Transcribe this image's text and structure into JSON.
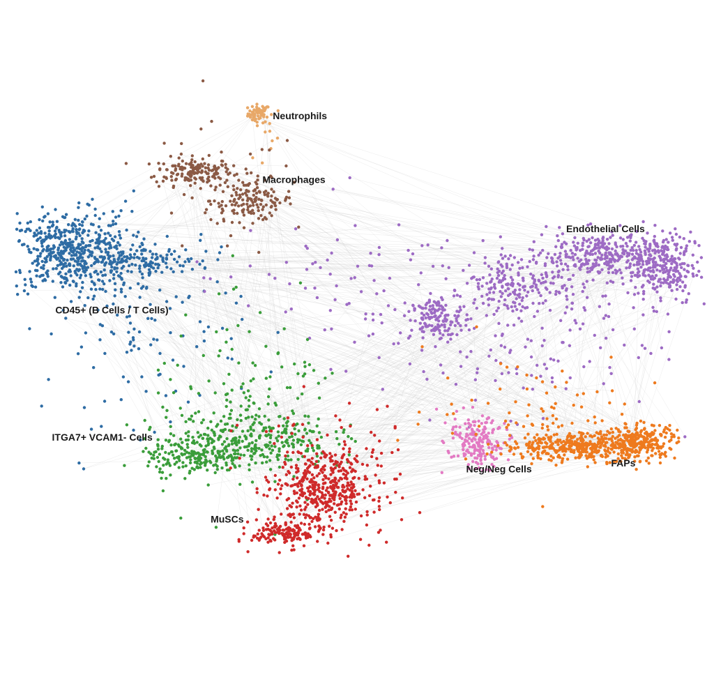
{
  "chart_data": {
    "type": "scatter",
    "title": "",
    "xlabel": "",
    "ylabel": "",
    "grid": false,
    "legend": "none",
    "edges": "light gray graph edges between cells",
    "series": [
      {
        "name": "Neutrophils",
        "color": "#e8a868",
        "clusters": [
          {
            "cx": 0.355,
            "cy": 0.87,
            "sx": 0.008,
            "sy": 0.008,
            "n": 55
          }
        ],
        "spread": [
          {
            "cx": 0.36,
            "cy": 0.83,
            "sx": 0.015,
            "sy": 0.03,
            "n": 12
          }
        ]
      },
      {
        "name": "Macrophages",
        "color": "#8b5a45",
        "clusters": [
          {
            "cx": 0.26,
            "cy": 0.77,
            "sx": 0.028,
            "sy": 0.012,
            "n": 160
          },
          {
            "cx": 0.345,
            "cy": 0.72,
            "sx": 0.03,
            "sy": 0.018,
            "n": 140
          }
        ],
        "spread": [
          {
            "cx": 0.3,
            "cy": 0.73,
            "sx": 0.06,
            "sy": 0.06,
            "n": 40
          }
        ]
      },
      {
        "name": "CD45+ (B Cells / T Cells)",
        "color": "#2e6ca4",
        "clusters": [
          {
            "cx": 0.08,
            "cy": 0.63,
            "sx": 0.045,
            "sy": 0.035,
            "n": 520
          },
          {
            "cx": 0.18,
            "cy": 0.615,
            "sx": 0.045,
            "sy": 0.012,
            "n": 120
          }
        ],
        "spread": [
          {
            "cx": 0.19,
            "cy": 0.52,
            "sx": 0.07,
            "sy": 0.09,
            "n": 150
          }
        ]
      },
      {
        "name": "Endothelial Cells",
        "color": "#9d6bc4",
        "clusters": [
          {
            "cx": 0.86,
            "cy": 0.625,
            "sx": 0.06,
            "sy": 0.02,
            "n": 380
          },
          {
            "cx": 0.94,
            "cy": 0.6,
            "sx": 0.025,
            "sy": 0.03,
            "n": 200
          },
          {
            "cx": 0.73,
            "cy": 0.575,
            "sx": 0.045,
            "sy": 0.025,
            "n": 180
          },
          {
            "cx": 0.61,
            "cy": 0.515,
            "sx": 0.018,
            "sy": 0.018,
            "n": 130
          }
        ],
        "spread": [
          {
            "cx": 0.7,
            "cy": 0.49,
            "sx": 0.12,
            "sy": 0.07,
            "n": 180
          },
          {
            "cx": 0.45,
            "cy": 0.58,
            "sx": 0.1,
            "sy": 0.05,
            "n": 60
          }
        ]
      },
      {
        "name": "ITGA7+ VCAM1- Cells",
        "color": "#3a9d3a",
        "clusters": [
          {
            "cx": 0.34,
            "cy": 0.31,
            "sx": 0.06,
            "sy": 0.025,
            "n": 300
          },
          {
            "cx": 0.26,
            "cy": 0.275,
            "sx": 0.035,
            "sy": 0.015,
            "n": 150
          }
        ],
        "spread": [
          {
            "cx": 0.35,
            "cy": 0.36,
            "sx": 0.08,
            "sy": 0.08,
            "n": 130
          }
        ]
      },
      {
        "name": "MuSCs",
        "color": "#cf2a2a",
        "clusters": [
          {
            "cx": 0.45,
            "cy": 0.22,
            "sx": 0.035,
            "sy": 0.03,
            "n": 380
          },
          {
            "cx": 0.395,
            "cy": 0.145,
            "sx": 0.025,
            "sy": 0.012,
            "n": 150
          }
        ],
        "spread": [
          {
            "cx": 0.45,
            "cy": 0.25,
            "sx": 0.06,
            "sy": 0.06,
            "n": 120
          }
        ]
      },
      {
        "name": "Neg/Neg Cells",
        "color": "#e37ac3",
        "clusters": [
          {
            "cx": 0.675,
            "cy": 0.3,
            "sx": 0.018,
            "sy": 0.02,
            "n": 160
          }
        ],
        "spread": [
          {
            "cx": 0.66,
            "cy": 0.32,
            "sx": 0.03,
            "sy": 0.03,
            "n": 30
          }
        ]
      },
      {
        "name": "FAPs",
        "color": "#ee7a1e",
        "clusters": [
          {
            "cx": 0.82,
            "cy": 0.295,
            "sx": 0.055,
            "sy": 0.012,
            "n": 420
          },
          {
            "cx": 0.91,
            "cy": 0.305,
            "sx": 0.025,
            "sy": 0.015,
            "n": 200
          }
        ],
        "spread": [
          {
            "cx": 0.76,
            "cy": 0.36,
            "sx": 0.08,
            "sy": 0.05,
            "n": 80
          }
        ]
      }
    ],
    "labels": [
      {
        "text": "Neutrophils",
        "x": 0.375,
        "y": 0.86
      },
      {
        "text": "Macrophages",
        "x": 0.36,
        "y": 0.75
      },
      {
        "text": "Endothelial Cells",
        "x": 0.8,
        "y": 0.665
      },
      {
        "text": "CD45+ (B Cells / T Cells)",
        "x": 0.06,
        "y": 0.525
      },
      {
        "text": "ITGA7+ VCAM1- Cells",
        "x": 0.055,
        "y": 0.305
      },
      {
        "text": "Neg/Neg Cells",
        "x": 0.655,
        "y": 0.25
      },
      {
        "text": "FAPs",
        "x": 0.865,
        "y": 0.26
      },
      {
        "text": "MuSCs",
        "x": 0.285,
        "y": 0.163
      }
    ]
  }
}
